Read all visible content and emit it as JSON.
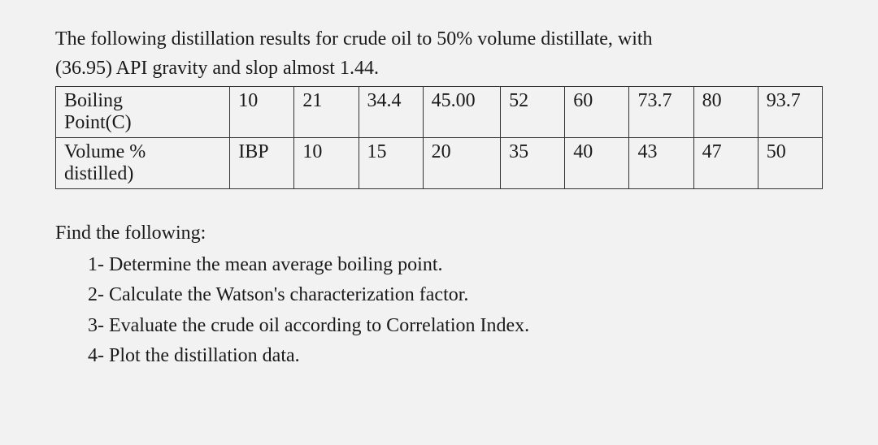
{
  "intro": {
    "line1": "The following distillation results for crude oil to 50% volume distillate, with",
    "line2": "(36.95) API gravity and slop almost 1.44."
  },
  "table": {
    "row1_label": "Boiling Point(C)",
    "row1_label_line1": "Boiling",
    "row1_label_line2": "Point(C)",
    "row2_label_line1": "Volume %",
    "row2_label_line2": "distilled)",
    "bp": [
      "10",
      "21",
      "34.4",
      "45.00",
      "52",
      "60",
      "73.7",
      "80",
      "93.7"
    ],
    "vol": [
      "IBP",
      "10",
      "15",
      "20",
      "35",
      "40",
      "43",
      "47",
      "50"
    ]
  },
  "find": {
    "heading": "Find the following:",
    "items": [
      "1- Determine the mean average boiling point.",
      "2-  Calculate the Watson's characterization factor.",
      "3- Evaluate the crude oil according to Correlation Index.",
      "4- Plot the distillation data."
    ]
  }
}
